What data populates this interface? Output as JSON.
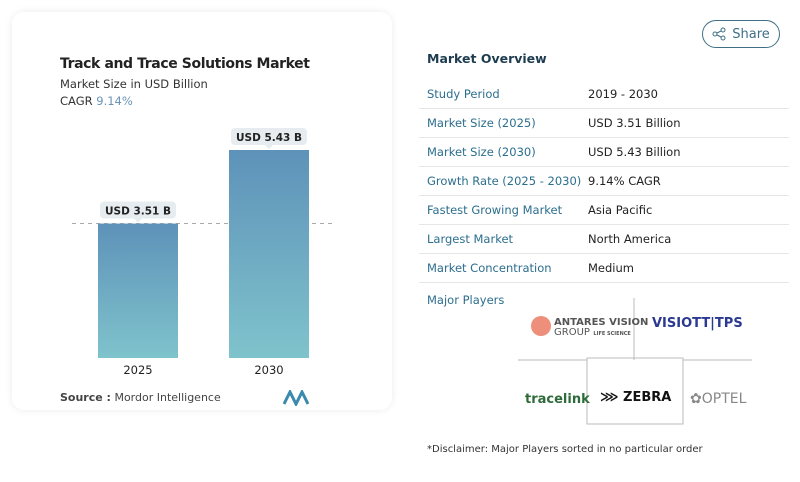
{
  "share_label": "Share",
  "chart_data": {
    "type": "bar",
    "title": "Track and Trace Solutions Market",
    "subtitle": "Market Size in USD Billion",
    "cagr_label": "CAGR",
    "cagr_value": "9.14%",
    "categories": [
      "2025",
      "2030"
    ],
    "values": [
      3.51,
      5.43
    ],
    "data_labels": [
      "USD 3.51 B",
      "USD 5.43 B"
    ],
    "ylim": [
      0,
      5.43
    ],
    "bar_color_top": "#5e92b9",
    "bar_color_bottom": "#7fc3cc",
    "reference_line": "dashed at 2025 value"
  },
  "source": {
    "label": "Source :",
    "value": "Mordor Intelligence"
  },
  "overview": {
    "title": "Market Overview",
    "rows": [
      {
        "label": "Study Period",
        "value": "2019 - 2030"
      },
      {
        "label": "Market Size (2025)",
        "value": "USD 3.51 Billion"
      },
      {
        "label": "Market Size (2030)",
        "value": "USD 5.43 Billion"
      },
      {
        "label": "Growth Rate (2025 - 2030)",
        "value": "9.14% CAGR"
      },
      {
        "label": "Fastest Growing Market",
        "value": "Asia Pacific"
      },
      {
        "label": "Largest Market",
        "value": "North America"
      },
      {
        "label": "Market Concentration",
        "value": "Medium"
      }
    ]
  },
  "major_players": {
    "title": "Major Players",
    "logos": [
      "ANTARES VISION GROUP LIFE SCIENCE",
      "VISIOTT TPS",
      "tracelink",
      "ZEBRA",
      "OPTEL"
    ]
  },
  "disclaimer": "*Disclaimer: Major Players sorted in no particular order"
}
